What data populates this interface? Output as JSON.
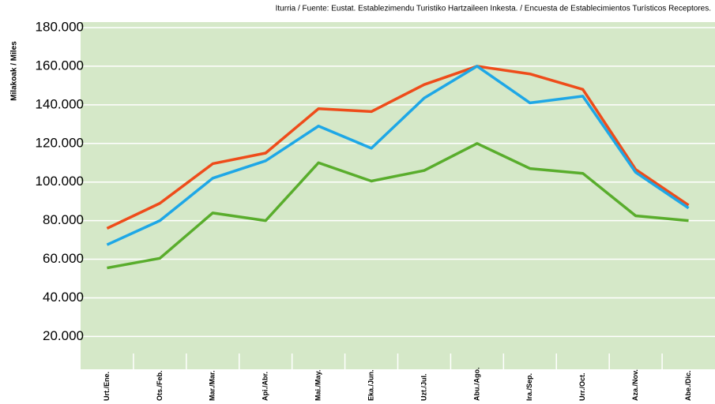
{
  "chart_data": {
    "type": "line",
    "source": "Iturria / Fuente: Eustat. Establezimendu Turistiko Hartzaileen Inkesta. / Encuesta de Establecimientos Turísticos Receptores.",
    "y_label": "Milakoak / Miles",
    "categories": [
      "Urt./Ene.",
      "Ots./Feb.",
      "Mar./Mar.",
      "Api./Abr.",
      "Mai./May.",
      "Eka./Jun.",
      "Uzt./Jul.",
      "Abu./Ago.",
      "Ira./Sep.",
      "Urr./Oct.",
      "Aza./Nov.",
      "Abe./Dic."
    ],
    "series": [
      {
        "color": "#ee4c1a",
        "values": [
          76000,
          89000,
          109500,
          115000,
          138000,
          136500,
          150500,
          160000,
          156000,
          148000,
          106500,
          88000
        ]
      },
      {
        "color": "#1ea7e6",
        "values": [
          67500,
          80000,
          102000,
          111000,
          129000,
          117500,
          143500,
          160000,
          141000,
          144500,
          105000,
          86500
        ]
      },
      {
        "color": "#59ad2c",
        "values": [
          55500,
          60500,
          84000,
          80000,
          110000,
          100500,
          106000,
          120000,
          107000,
          104500,
          82500,
          80000
        ]
      }
    ],
    "ylim": [
      3000,
      180000
    ],
    "yticks": [
      {
        "value": 20000,
        "label": "20.000"
      },
      {
        "value": 40000,
        "label": "40.000"
      },
      {
        "value": 60000,
        "label": "60.000"
      },
      {
        "value": 80000,
        "label": "80.000"
      },
      {
        "value": 100000,
        "label": "100.000"
      },
      {
        "value": 120000,
        "label": "120.000"
      },
      {
        "value": 140000,
        "label": "140.000"
      },
      {
        "value": 160000,
        "label": "160.000"
      },
      {
        "value": 180000,
        "label": "180.000"
      }
    ],
    "grid": true,
    "plot_background": "#d5e8c8"
  }
}
